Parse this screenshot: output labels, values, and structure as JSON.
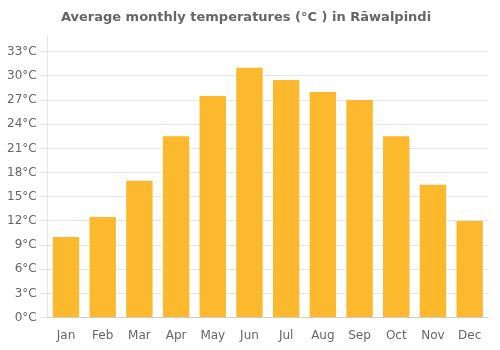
{
  "chart_data": {
    "type": "bar",
    "title": "Average monthly temperatures (°C ) in Rāwalpindi",
    "categories": [
      "Jan",
      "Feb",
      "Mar",
      "Apr",
      "May",
      "Jun",
      "Jul",
      "Aug",
      "Sep",
      "Oct",
      "Nov",
      "Dec"
    ],
    "values": [
      10.0,
      12.5,
      17.0,
      22.5,
      27.5,
      31.0,
      29.5,
      28.0,
      27.0,
      22.5,
      16.5,
      12.0
    ],
    "color": "#FDB92E",
    "ylim": [
      0,
      35
    ],
    "yticks": [
      {
        "value": 0,
        "label": "0°C"
      },
      {
        "value": 3,
        "label": "3°C"
      },
      {
        "value": 6,
        "label": "6°C"
      },
      {
        "value": 9,
        "label": "9°C"
      },
      {
        "value": 12,
        "label": "12°C"
      },
      {
        "value": 15,
        "label": "15°C"
      },
      {
        "value": 18,
        "label": "18°C"
      },
      {
        "value": 21,
        "label": "21°C"
      },
      {
        "value": 24,
        "label": "24°C"
      },
      {
        "value": 27,
        "label": "27°C"
      },
      {
        "value": 30,
        "label": "30°C"
      },
      {
        "value": 33,
        "label": "33°C"
      }
    ],
    "grid": true
  }
}
